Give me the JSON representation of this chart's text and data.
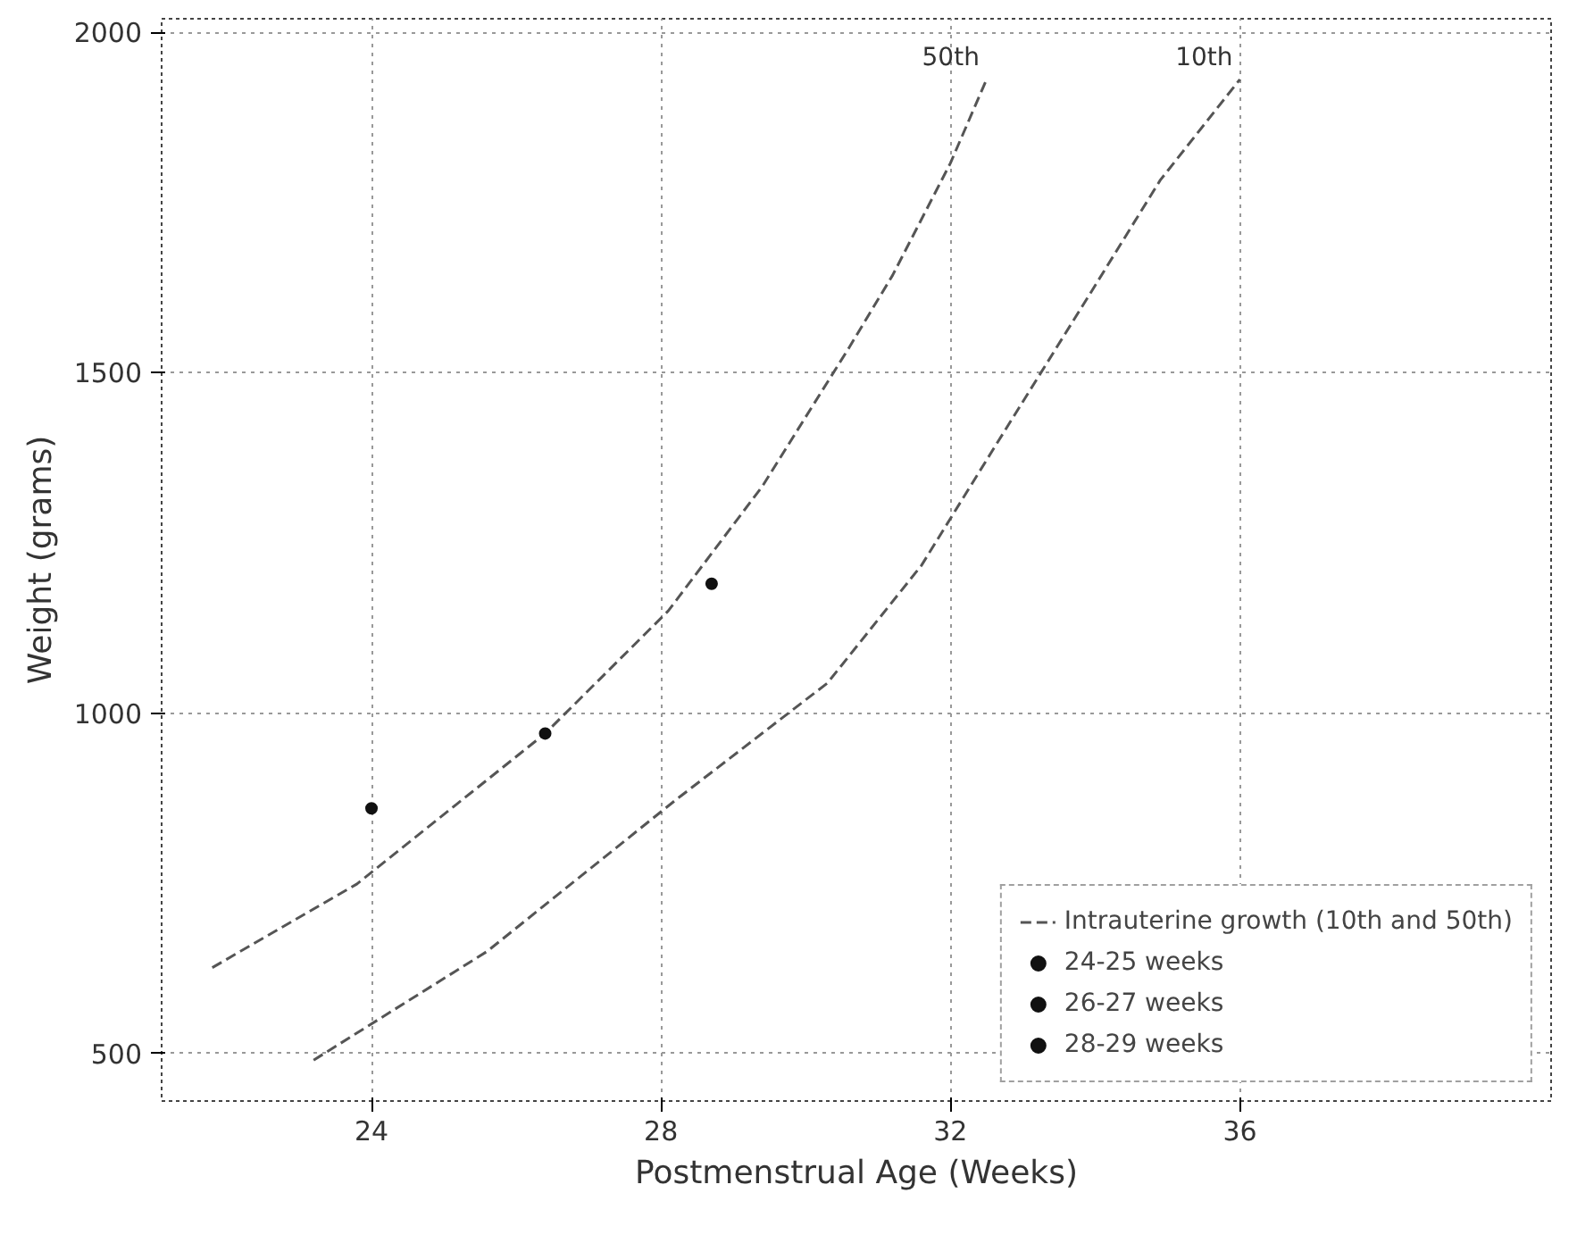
{
  "chart_data": {
    "type": "line",
    "xlabel": "Postmenstrual Age (Weeks)",
    "ylabel": "Weight (grams)",
    "xlim": [
      21.1,
      40.3
    ],
    "ylim": [
      430,
      2020
    ],
    "xticks": [
      24,
      28,
      32,
      36
    ],
    "yticks": [
      500,
      1000,
      1500,
      2000
    ],
    "grid": true,
    "legend": "bottom right",
    "line_style": "dashed",
    "series": [
      {
        "name": "Intrauterine growth (10th and 50th)",
        "color": "#555555",
        "x": [
          21.8,
          23.8,
          26.4,
          28.1,
          29.4,
          30.6,
          31.2,
          32.0,
          32.5
        ],
        "values": [
          626,
          749,
          970,
          1150,
          1333,
          1537,
          1643,
          1808,
          1931
        ]
      },
      {
        "color": "#555555",
        "x": [
          23.2,
          25.6,
          28.2,
          30.3,
          31.6,
          32.6,
          33.9,
          34.9,
          36.0
        ],
        "values": [
          490,
          650,
          872,
          1044,
          1217,
          1389,
          1611,
          1783,
          1931
        ]
      },
      {
        "name": "24-25 weeks",
        "type": "scatter",
        "marker": "circle",
        "color": "#111111",
        "x": [
          24.0
        ],
        "values": [
          860
        ]
      },
      {
        "name": "26-27 weeks",
        "type": "scatter",
        "marker": "circle",
        "color": "#111111",
        "x": [
          26.4
        ],
        "values": [
          970
        ]
      },
      {
        "name": "28-29 weeks",
        "type": "scatter",
        "marker": "circle",
        "color": "#111111",
        "x": [
          28.7
        ],
        "values": [
          1190
        ]
      }
    ],
    "annotations": [
      {
        "text": "50th",
        "x": 32.5,
        "y": 1931
      },
      {
        "text": "10th",
        "x": 36.0,
        "y": 1931
      }
    ]
  }
}
